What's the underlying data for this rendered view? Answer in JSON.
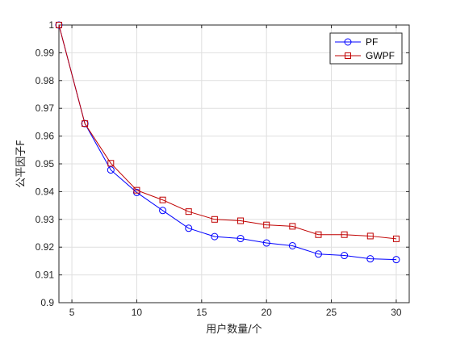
{
  "chart_data": {
    "type": "line",
    "title": "",
    "xlabel": "用户数量/个",
    "ylabel": "公平因子F",
    "xlim": [
      4,
      31
    ],
    "ylim": [
      0.9,
      1.0
    ],
    "xticks": [
      5,
      10,
      15,
      20,
      25,
      30
    ],
    "yticks": [
      0.9,
      0.91,
      0.92,
      0.93,
      0.94,
      0.95,
      0.96,
      0.97,
      0.98,
      0.99,
      1
    ],
    "xtick_labels": [
      "5",
      "10",
      "15",
      "20",
      "25",
      "30"
    ],
    "ytick_labels": [
      "0.9",
      "0.91",
      "0.92",
      "0.93",
      "0.94",
      "0.95",
      "0.96",
      "0.97",
      "0.98",
      "0.99",
      "1"
    ],
    "grid": true,
    "legend_position": "top-right",
    "x": [
      4,
      6,
      8,
      10,
      12,
      14,
      16,
      18,
      20,
      22,
      24,
      26,
      28,
      30
    ],
    "series": [
      {
        "name": "PF",
        "color": "#0000ff",
        "marker": "circle",
        "values": [
          1.0,
          0.9645,
          0.9478,
          0.9397,
          0.9332,
          0.9268,
          0.9238,
          0.9231,
          0.9215,
          0.9205,
          0.9175,
          0.917,
          0.9158,
          0.9155
        ]
      },
      {
        "name": "GWPF",
        "color": "#c00000",
        "marker": "square",
        "values": [
          1.0,
          0.9645,
          0.9502,
          0.9405,
          0.937,
          0.9328,
          0.93,
          0.9295,
          0.928,
          0.9275,
          0.9245,
          0.9245,
          0.924,
          0.923
        ]
      }
    ]
  }
}
